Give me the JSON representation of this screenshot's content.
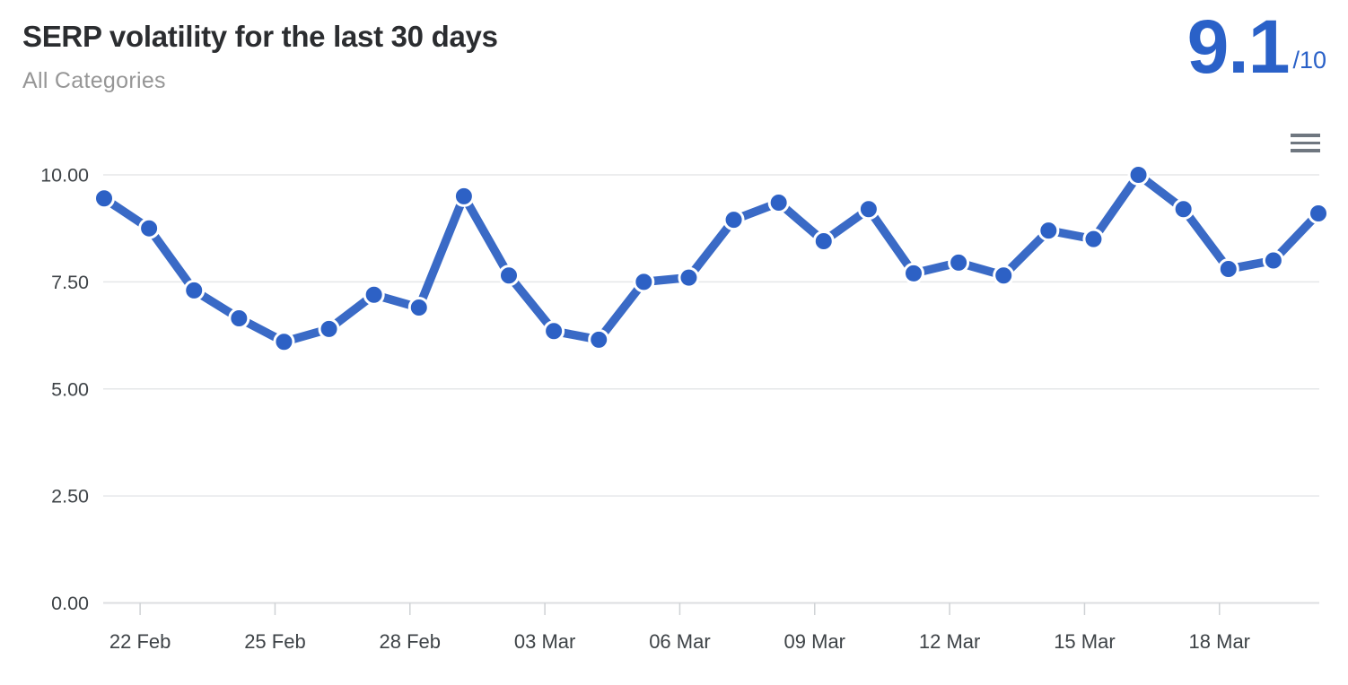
{
  "header": {
    "title": "SERP volatility for the last 30 days",
    "subtitle": "All Categories",
    "score": {
      "value": "9.1",
      "denominator": "/10"
    }
  },
  "icons": {
    "menu": "hamburger-menu-icon"
  },
  "colors": {
    "accent_blue": "#2a61c8",
    "line_blue": "#3a6ac6",
    "marker_blue": "#2d61c5",
    "title_text": "#2b2d30",
    "subtitle_text": "#969696",
    "axis_text": "#3e4347",
    "gridline": "#e5e7e9",
    "baseline": "#dcdee0",
    "tick": "#cfd2d5",
    "menu_icon": "#6f7780",
    "background": "#ffffff"
  },
  "chart_data": {
    "type": "line",
    "title": "SERP volatility for the last 30 days",
    "subtitle": "All Categories",
    "legend": "none",
    "grid": "horizontal",
    "ylim": [
      0,
      10
    ],
    "x": [
      "21 Feb",
      "22 Feb",
      "23 Feb",
      "24 Feb",
      "25 Feb",
      "26 Feb",
      "27 Feb",
      "28 Feb",
      "01 Mar",
      "02 Mar",
      "03 Mar",
      "04 Mar",
      "05 Mar",
      "06 Mar",
      "07 Mar",
      "08 Mar",
      "09 Mar",
      "10 Mar",
      "11 Mar",
      "12 Mar",
      "13 Mar",
      "14 Mar",
      "15 Mar",
      "16 Mar",
      "17 Mar",
      "18 Mar",
      "19 Mar",
      "20 Mar"
    ],
    "values": [
      9.45,
      8.75,
      7.3,
      6.65,
      6.1,
      6.4,
      7.2,
      6.9,
      9.5,
      7.65,
      6.35,
      6.15,
      7.5,
      7.6,
      8.95,
      9.35,
      8.45,
      9.2,
      7.7,
      7.95,
      7.65,
      8.7,
      8.5,
      10,
      9.2,
      7.8,
      8.0,
      9.1
    ],
    "y_ticks": [
      0,
      2.5,
      5,
      7.5,
      10
    ],
    "y_tick_labels": [
      "0.00",
      "2.50",
      "5.00",
      "7.50",
      "10.00"
    ],
    "x_tick_indices": [
      1,
      4,
      7,
      10,
      13,
      16,
      19,
      22,
      25
    ],
    "x_tick_labels": [
      "22 Feb",
      "25 Feb",
      "28 Feb",
      "03 Mar",
      "06 Mar",
      "09 Mar",
      "12 Mar",
      "15 Mar",
      "18 Mar"
    ]
  }
}
